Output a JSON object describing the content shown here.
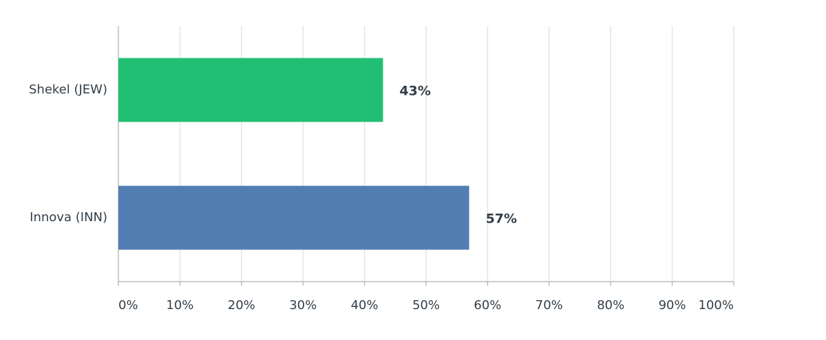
{
  "chart_data": {
    "type": "bar",
    "orientation": "horizontal",
    "categories": [
      "Shekel (JEW)",
      "Innova (INN)"
    ],
    "values": [
      43,
      57
    ],
    "value_labels": [
      "43%",
      "57%"
    ],
    "colors": [
      "#21bf73",
      "#517db3"
    ],
    "xlim": [
      0,
      100
    ],
    "xticks": [
      {
        "value": 0,
        "label": "0%"
      },
      {
        "value": 10,
        "label": "10%"
      },
      {
        "value": 20,
        "label": "20%"
      },
      {
        "value": 30,
        "label": "30%"
      },
      {
        "value": 40,
        "label": "40%"
      },
      {
        "value": 50,
        "label": "50%"
      },
      {
        "value": 60,
        "label": "60%"
      },
      {
        "value": 70,
        "label": "70%"
      },
      {
        "value": 80,
        "label": "80%"
      },
      {
        "value": 90,
        "label": "90%"
      },
      {
        "value": 100,
        "label": "100%"
      }
    ],
    "grid": true
  }
}
